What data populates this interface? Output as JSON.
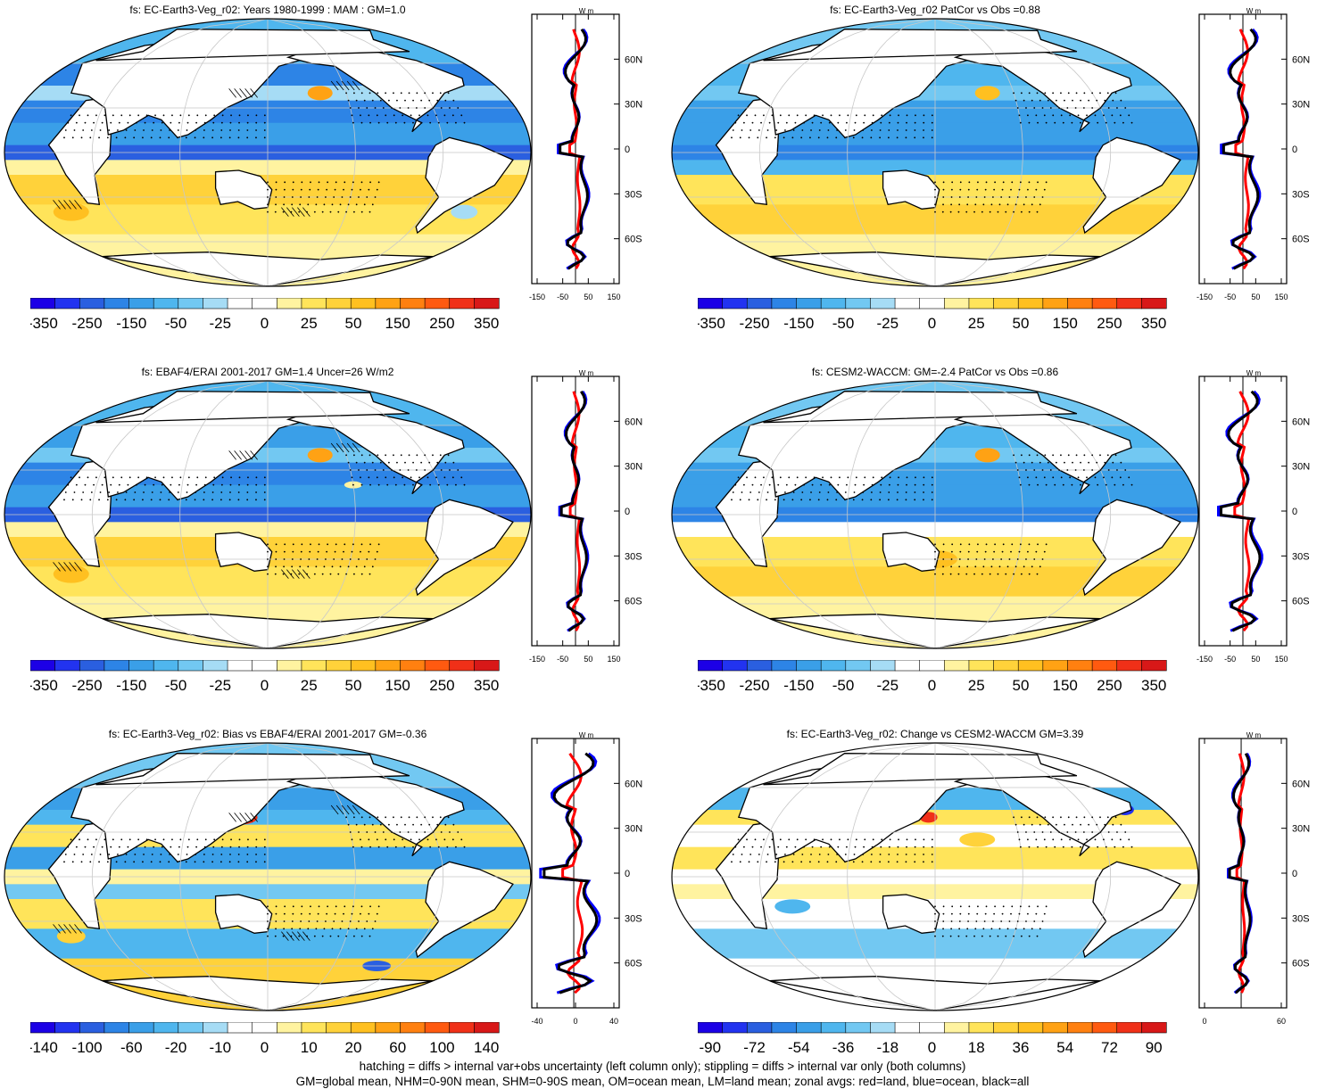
{
  "panels": [
    {
      "title": "fs: EC-Earth3-Veg_r02: Years 1980-1999 : MAM : GM=1.0",
      "colorbar_labels": [
        "-350",
        "-250",
        "-150",
        "-50",
        "-25",
        "0",
        "25",
        "50",
        "150",
        "250",
        "350"
      ],
      "zonal_x_ticks": [
        "-150",
        "-50",
        "50",
        "150"
      ],
      "zonal_lat_ticks": [
        "60N",
        "30N",
        "0",
        "30S",
        "60S"
      ],
      "zonal_units": "W m",
      "hatching": true,
      "stippling": true
    },
    {
      "title": "fs: EC-Earth3-Veg_r02 PatCor vs Obs =0.88",
      "colorbar_labels": [
        "-350",
        "-250",
        "-150",
        "-50",
        "-25",
        "0",
        "25",
        "50",
        "150",
        "250",
        "350"
      ],
      "zonal_x_ticks": [
        "-150",
        "-50",
        "50",
        "150"
      ],
      "zonal_lat_ticks": [
        "60N",
        "30N",
        "0",
        "30S",
        "60S"
      ],
      "zonal_units": "W m",
      "hatching": false,
      "stippling": true
    },
    {
      "title": "fs: EBAF4/ERAI 2001-2017 GM=1.4 Uncer=26 W/m2",
      "colorbar_labels": [
        "-350",
        "-250",
        "-150",
        "-50",
        "-25",
        "0",
        "25",
        "50",
        "150",
        "250",
        "350"
      ],
      "zonal_x_ticks": [
        "-150",
        "-50",
        "50",
        "150"
      ],
      "zonal_lat_ticks": [
        "60N",
        "30N",
        "0",
        "30S",
        "60S"
      ],
      "zonal_units": "W m",
      "hatching": true,
      "stippling": true
    },
    {
      "title": "fs: CESM2-WACCM: GM=-2.4 PatCor vs Obs =0.86",
      "colorbar_labels": [
        "-350",
        "-250",
        "-150",
        "-50",
        "-25",
        "0",
        "25",
        "50",
        "150",
        "250",
        "350"
      ],
      "zonal_x_ticks": [
        "-150",
        "-50",
        "50",
        "150"
      ],
      "zonal_lat_ticks": [
        "60N",
        "30N",
        "0",
        "30S",
        "60S"
      ],
      "zonal_units": "W m",
      "hatching": false,
      "stippling": true
    },
    {
      "title": "fs: EC-Earth3-Veg_r02: Bias vs EBAF4/ERAI 2001-2017 GM=-0.36",
      "colorbar_labels": [
        "-140",
        "-100",
        "-60",
        "-20",
        "-10",
        "0",
        "10",
        "20",
        "60",
        "100",
        "140"
      ],
      "zonal_x_ticks": [
        "-40",
        "0",
        "40"
      ],
      "zonal_lat_ticks": [
        "60N",
        "30N",
        "0",
        "30S",
        "60S"
      ],
      "zonal_units": "W m",
      "hatching": true,
      "stippling": true
    },
    {
      "title": "fs: EC-Earth3-Veg_r02: Change vs CESM2-WACCM GM=3.39",
      "colorbar_labels": [
        "-90",
        "-72",
        "-54",
        "-36",
        "-18",
        "0",
        "18",
        "36",
        "54",
        "72",
        "90"
      ],
      "zonal_x_ticks": [
        "0",
        "60"
      ],
      "zonal_lat_ticks": [
        "60N",
        "30N",
        "0",
        "30S",
        "60S"
      ],
      "zonal_units": "W m",
      "hatching": false,
      "stippling": true
    }
  ],
  "colors": {
    "scale": [
      "#1c00e6",
      "#2233f0",
      "#2a5fe0",
      "#2d84e6",
      "#3a9fe8",
      "#4fb6ee",
      "#72c8f2",
      "#a6dcf5",
      "#ffffff",
      "#ffffff",
      "#fff3a0",
      "#ffe45a",
      "#ffd23a",
      "#ffc020",
      "#ffa214",
      "#ff8010",
      "#ff5a10",
      "#f03018",
      "#d81818"
    ],
    "land": "#ffffff",
    "zonal_land": "#ff0000",
    "zonal_ocean": "#0000ff",
    "zonal_all": "#000000"
  },
  "footer": {
    "line1": "hatching = diffs > internal var+obs uncertainty (left column only); stippling = diffs > internal var only (both columns)",
    "line2": "GM=global mean, NHM=0-90N mean, SHM=0-90S mean, OM=ocean mean, LM=land mean; zonal avgs: red=land, blue=ocean, black=all"
  }
}
